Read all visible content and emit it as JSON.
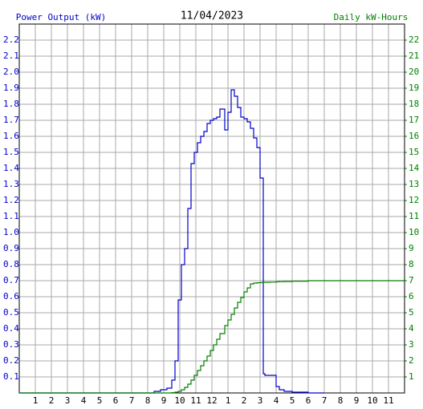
{
  "chart_data": {
    "type": "step-line",
    "title": "11/04/2023",
    "y_label": "Power Output (kW)",
    "y2_label": "Daily kW-Hours",
    "xlim": [
      0,
      24
    ],
    "xticks": [
      1,
      2,
      3,
      4,
      5,
      6,
      7,
      8,
      9,
      10,
      11,
      12,
      {
        "value": 13,
        "label": "1"
      },
      {
        "value": 14,
        "label": "2"
      },
      {
        "value": 15,
        "label": "3"
      },
      {
        "value": 16,
        "label": "4"
      },
      {
        "value": 17,
        "label": "5"
      },
      {
        "value": 18,
        "label": "6"
      },
      {
        "value": 19,
        "label": "7"
      },
      {
        "value": 20,
        "label": "8"
      },
      {
        "value": 21,
        "label": "9"
      },
      {
        "value": 22,
        "label": "10"
      },
      {
        "value": 23,
        "label": "11"
      }
    ],
    "ylim": [
      0,
      2.3
    ],
    "yticks": [
      0.1,
      0.2,
      0.3,
      0.4,
      0.5,
      0.6,
      0.7,
      0.8,
      0.9,
      {
        "value": 1,
        "label": "1.0"
      },
      1.1,
      1.2,
      1.3,
      1.4,
      1.5,
      1.6,
      1.7,
      1.8,
      1.9,
      {
        "value": 2,
        "label": "2.0"
      },
      2.1,
      2.2
    ],
    "y2lim": [
      0,
      23
    ],
    "y2ticks": [
      1,
      2,
      3,
      4,
      5,
      6,
      7,
      8,
      9,
      10,
      11,
      12,
      13,
      14,
      15,
      16,
      17,
      18,
      19,
      20,
      21,
      22
    ],
    "grid": true,
    "x": [
      0,
      8.4,
      8.8,
      9.2,
      9.5,
      9.7,
      9.9,
      10.1,
      10.3,
      10.5,
      10.7,
      10.9,
      11.1,
      11.3,
      11.5,
      11.7,
      11.9,
      12.1,
      12.3,
      12.5,
      12.8,
      13.0,
      13.2,
      13.4,
      13.6,
      13.8,
      14.0,
      14.2,
      14.4,
      14.6,
      14.8,
      15.0,
      15.2,
      15.3,
      15.6,
      16.0,
      16.2,
      16.5,
      17.0,
      18.0,
      19.0,
      24
    ],
    "series": [
      {
        "name": "Power Output (kW)",
        "color": "#0000cc",
        "values": [
          0,
          0.01,
          0.02,
          0.03,
          0.08,
          0.2,
          0.58,
          0.8,
          0.9,
          1.15,
          1.43,
          1.5,
          1.56,
          1.6,
          1.63,
          1.68,
          1.7,
          1.71,
          1.72,
          1.77,
          1.64,
          1.75,
          1.89,
          1.85,
          1.78,
          1.72,
          1.71,
          1.69,
          1.65,
          1.59,
          1.53,
          1.34,
          0.12,
          0.11,
          0.11,
          0.04,
          0.02,
          0.01,
          0.005,
          0,
          0,
          null
        ]
      },
      {
        "name": "Daily kW-Hours",
        "color": "#008000",
        "axis": "y2",
        "values": [
          0,
          0,
          0,
          0,
          0.02,
          0.05,
          0.1,
          0.2,
          0.35,
          0.55,
          0.8,
          1.1,
          1.4,
          1.7,
          2.0,
          2.3,
          2.65,
          3.0,
          3.35,
          3.7,
          4.2,
          4.55,
          4.9,
          5.3,
          5.65,
          5.95,
          6.3,
          6.55,
          6.8,
          6.85,
          6.87,
          6.88,
          6.9,
          6.9,
          6.91,
          6.93,
          6.94,
          6.95,
          6.97,
          7.0,
          7.0,
          7.0
        ]
      }
    ]
  }
}
